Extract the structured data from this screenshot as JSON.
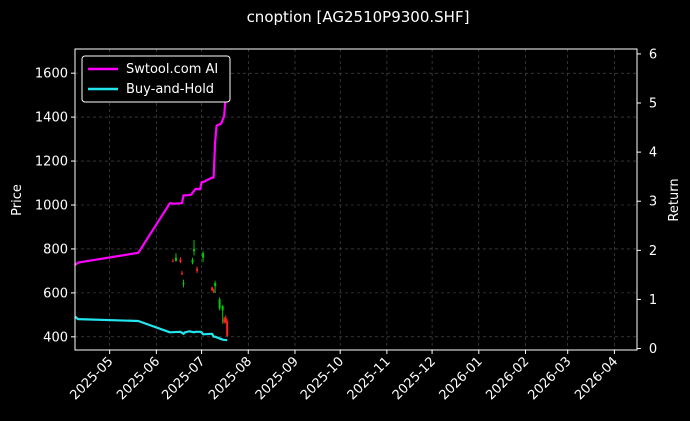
{
  "chart_data": {
    "type": "line",
    "title": "cnoption [AG2510P9300.SHF]",
    "ylabel_left": "Price",
    "ylabel_right": "Return",
    "ylim_left": [
      340,
      1710
    ],
    "ylim_right": [
      -0.03,
      6.1
    ],
    "xlim": [
      "2025-04-08",
      "2026-04-16"
    ],
    "grid": true,
    "legend_position": "upper-left",
    "x_ticks": [
      "2025-05",
      "2025-06",
      "2025-07",
      "2025-08",
      "2025-09",
      "2025-10",
      "2025-11",
      "2025-12",
      "2026-01",
      "2026-02",
      "2026-03",
      "2026-04"
    ],
    "y_ticks_left": [
      400,
      600,
      800,
      1000,
      1200,
      1400,
      1600
    ],
    "y_ticks_right": [
      0,
      1,
      2,
      3,
      4,
      5,
      6
    ],
    "colors": {
      "up": "#00cc00",
      "down": "#ff2222",
      "strategy": "#ff00ff",
      "buy_hold": "#22e5ee"
    },
    "series": [
      {
        "name": "Swtool.com AI",
        "axis": "right",
        "color": "#ff00ff",
        "x": [
          "2025-04-08",
          "2025-04-10",
          "2025-05-20",
          "2025-06-10",
          "2025-06-13",
          "2025-06-18",
          "2025-06-19",
          "2025-06-21",
          "2025-06-24",
          "2025-06-27",
          "2025-06-30",
          "2025-07-01",
          "2025-07-02",
          "2025-07-08",
          "2025-07-09",
          "2025-07-10",
          "2025-07-11",
          "2025-07-14",
          "2025-07-16",
          "2025-07-17",
          "2025-07-18"
        ],
        "values": [
          1.7,
          1.75,
          1.95,
          2.96,
          2.95,
          2.96,
          3.12,
          3.12,
          3.13,
          3.25,
          3.24,
          3.39,
          3.39,
          3.48,
          3.48,
          4.2,
          4.54,
          4.58,
          4.74,
          5.14,
          5.7
        ]
      },
      {
        "name": "Buy-and-Hold",
        "axis": "right",
        "color": "#22e5ee",
        "x": [
          "2025-04-08",
          "2025-04-10",
          "2025-05-20",
          "2025-06-10",
          "2025-06-17",
          "2025-06-19",
          "2025-06-20",
          "2025-06-23",
          "2025-06-26",
          "2025-06-27",
          "2025-06-30",
          "2025-07-01",
          "2025-07-02",
          "2025-07-08",
          "2025-07-09",
          "2025-07-10",
          "2025-07-15",
          "2025-07-18"
        ],
        "values": [
          0.65,
          0.6,
          0.56,
          0.33,
          0.34,
          0.3,
          0.33,
          0.35,
          0.33,
          0.34,
          0.34,
          0.33,
          0.29,
          0.3,
          0.24,
          0.24,
          0.18,
          0.17
        ]
      }
    ],
    "candles": [
      {
        "date": "2025-06-12",
        "open": 746,
        "high": 756,
        "low": 740,
        "close": 742
      },
      {
        "date": "2025-06-14",
        "open": 745,
        "high": 780,
        "low": 742,
        "close": 760
      },
      {
        "date": "2025-06-17",
        "open": 752,
        "high": 762,
        "low": 735,
        "close": 740
      },
      {
        "date": "2025-06-18",
        "open": 690,
        "high": 700,
        "low": 680,
        "close": 685
      },
      {
        "date": "2025-06-19",
        "open": 640,
        "high": 660,
        "low": 625,
        "close": 645
      },
      {
        "date": "2025-06-25",
        "open": 738,
        "high": 760,
        "low": 730,
        "close": 750
      },
      {
        "date": "2025-06-26",
        "open": 790,
        "high": 840,
        "low": 770,
        "close": 800
      },
      {
        "date": "2025-06-28",
        "open": 710,
        "high": 720,
        "low": 690,
        "close": 700
      },
      {
        "date": "2025-07-02",
        "open": 760,
        "high": 790,
        "low": 740,
        "close": 780
      },
      {
        "date": "2025-07-08",
        "open": 625,
        "high": 628,
        "low": 608,
        "close": 612
      },
      {
        "date": "2025-07-09",
        "open": 610,
        "high": 618,
        "low": 600,
        "close": 605
      },
      {
        "date": "2025-07-10",
        "open": 630,
        "high": 655,
        "low": 600,
        "close": 645
      },
      {
        "date": "2025-07-13",
        "open": 530,
        "high": 580,
        "low": 520,
        "close": 570
      },
      {
        "date": "2025-07-15",
        "open": 520,
        "high": 545,
        "low": 460,
        "close": 540
      },
      {
        "date": "2025-07-16",
        "open": 480,
        "high": 490,
        "low": 460,
        "close": 470
      },
      {
        "date": "2025-07-17",
        "open": 488,
        "high": 498,
        "low": 462,
        "close": 465
      },
      {
        "date": "2025-07-18",
        "open": 470,
        "high": 480,
        "low": 400,
        "close": 405
      }
    ]
  }
}
